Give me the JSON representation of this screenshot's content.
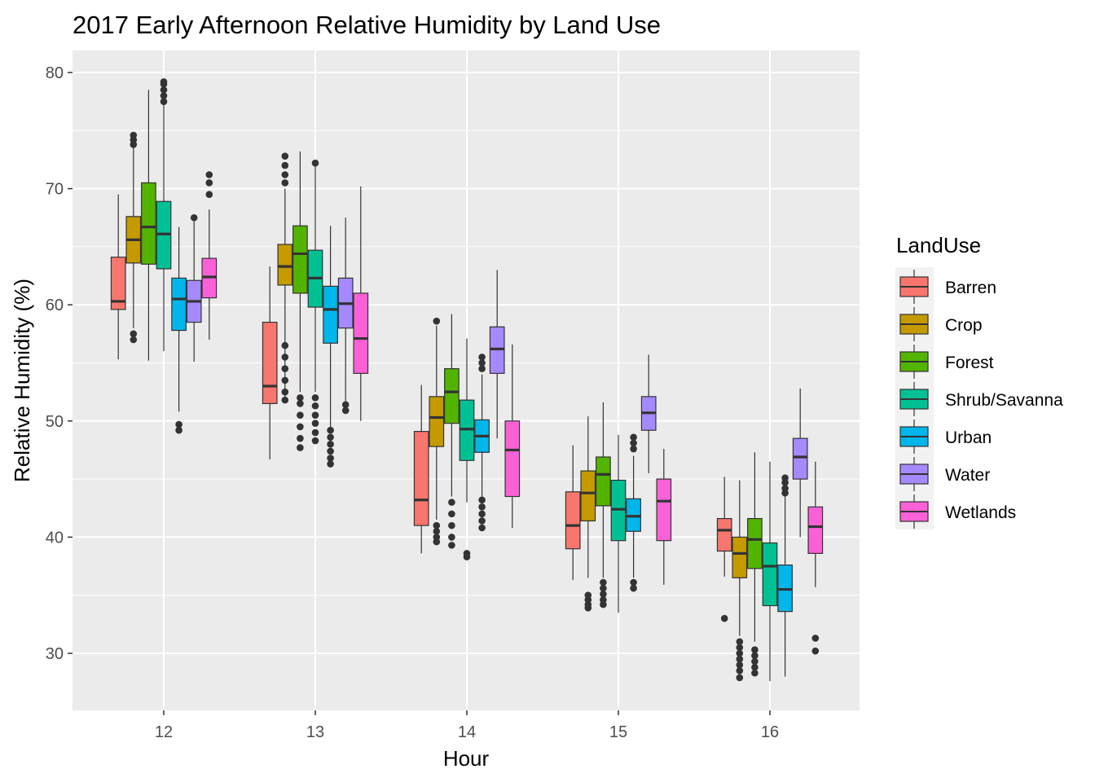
{
  "chart_data": {
    "type": "boxplot",
    "title": "2017 Early Afternoon Relative Humidity by Land Use",
    "xlabel": "Hour",
    "ylabel": "Relative Humidity (%)",
    "categories": [
      "12",
      "13",
      "14",
      "15",
      "16"
    ],
    "yticks": [
      30,
      40,
      50,
      60,
      70,
      80
    ],
    "ylim": [
      25,
      81.8
    ],
    "grid": true,
    "legend": {
      "title": "LandUse",
      "position": "right"
    },
    "series": [
      {
        "name": "Barren",
        "color": "#F8766D",
        "boxes": [
          {
            "min": 55.3,
            "q1": 59.6,
            "median": 60.3,
            "q3": 64.1,
            "max": 69.5,
            "outliers": []
          },
          {
            "min": 46.7,
            "q1": 51.5,
            "median": 53.0,
            "q3": 58.5,
            "max": 63.3,
            "outliers": []
          },
          {
            "min": 38.6,
            "q1": 41.0,
            "median": 43.2,
            "q3": 49.1,
            "max": 53.1,
            "outliers": []
          },
          {
            "min": 36.3,
            "q1": 39.0,
            "median": 41.0,
            "q3": 43.9,
            "max": 47.9,
            "outliers": []
          },
          {
            "min": 36.6,
            "q1": 38.8,
            "median": 40.6,
            "q3": 41.6,
            "max": 45.2,
            "outliers": [
              33.0
            ]
          }
        ]
      },
      {
        "name": "Crop",
        "color": "#C49A00",
        "boxes": [
          {
            "min": 58.0,
            "q1": 63.6,
            "median": 65.6,
            "q3": 67.6,
            "max": 73.8,
            "outliers": [
              57.0,
              57.5,
              73.8,
              74.2,
              74.6
            ]
          },
          {
            "min": 52.0,
            "q1": 61.7,
            "median": 63.3,
            "q3": 65.2,
            "max": 70.0,
            "outliers": [
              51.8,
              52.5,
              53.5,
              54.5,
              55.5,
              56.5,
              70.5,
              71.2,
              72.0,
              72.8
            ]
          },
          {
            "min": 41.5,
            "q1": 47.8,
            "median": 50.3,
            "q3": 52.1,
            "max": 58.2,
            "outliers": [
              39.6,
              40.0,
              40.5,
              41.0,
              58.6
            ]
          },
          {
            "min": 36.5,
            "q1": 41.4,
            "median": 43.8,
            "q3": 45.7,
            "max": 50.4,
            "outliers": [
              33.9,
              34.2,
              34.6,
              35.0
            ]
          },
          {
            "min": 31.5,
            "q1": 36.5,
            "median": 38.6,
            "q3": 40.0,
            "max": 44.9,
            "outliers": [
              27.9,
              28.5,
              29.0,
              29.5,
              30.0,
              30.5,
              31.0
            ]
          }
        ]
      },
      {
        "name": "Forest",
        "color": "#53B400",
        "boxes": [
          {
            "min": 55.2,
            "q1": 63.5,
            "median": 66.7,
            "q3": 70.5,
            "max": 78.5,
            "outliers": []
          },
          {
            "min": 52.5,
            "q1": 61.0,
            "median": 64.4,
            "q3": 66.8,
            "max": 73.2,
            "outliers": [
              47.7,
              48.5,
              49.5,
              50.5,
              51.5,
              52.0
            ]
          },
          {
            "min": 43.5,
            "q1": 49.8,
            "median": 52.5,
            "q3": 54.5,
            "max": 59.2,
            "outliers": [
              39.3,
              40.0,
              41.0,
              42.0,
              43.0
            ]
          },
          {
            "min": 36.5,
            "q1": 42.7,
            "median": 45.4,
            "q3": 46.9,
            "max": 51.6,
            "outliers": [
              34.2,
              34.6,
              35.1,
              35.6,
              36.1
            ]
          },
          {
            "min": 31.0,
            "q1": 37.3,
            "median": 39.8,
            "q3": 41.6,
            "max": 47.3,
            "outliers": [
              28.3,
              28.8,
              29.3,
              29.8,
              30.3
            ]
          }
        ]
      },
      {
        "name": "Shrub/Savanna",
        "color": "#00C094",
        "boxes": [
          {
            "min": 56.0,
            "q1": 63.1,
            "median": 66.1,
            "q3": 68.9,
            "max": 77.5,
            "outliers": [
              77.5,
              78.0,
              78.5,
              79.0,
              79.2
            ]
          },
          {
            "min": 52.5,
            "q1": 59.8,
            "median": 62.3,
            "q3": 64.7,
            "max": 72.0,
            "outliers": [
              48.3,
              49.0,
              49.8,
              50.5,
              51.3,
              52.0,
              72.2
            ]
          },
          {
            "min": 43.0,
            "q1": 46.6,
            "median": 49.3,
            "q3": 51.8,
            "max": 57.1,
            "outliers": [
              38.3,
              38.6
            ]
          },
          {
            "min": 33.5,
            "q1": 39.7,
            "median": 42.4,
            "q3": 44.9,
            "max": 48.8,
            "outliers": []
          },
          {
            "min": 27.6,
            "q1": 34.1,
            "median": 37.5,
            "q3": 39.5,
            "max": 46.5,
            "outliers": []
          }
        ]
      },
      {
        "name": "Urban",
        "color": "#00B6EB",
        "boxes": [
          {
            "min": 50.8,
            "q1": 57.8,
            "median": 60.5,
            "q3": 62.3,
            "max": 66.7,
            "outliers": [
              49.2,
              49.7
            ]
          },
          {
            "min": 49.5,
            "q1": 56.7,
            "median": 59.6,
            "q3": 61.6,
            "max": 66.8,
            "outliers": [
              46.3,
              46.8,
              47.4,
              48.0,
              48.6,
              49.2
            ]
          },
          {
            "min": 43.5,
            "q1": 47.3,
            "median": 48.7,
            "q3": 50.1,
            "max": 54.0,
            "outliers": [
              40.8,
              41.4,
              42.0,
              42.6,
              43.2,
              54.5,
              55.0,
              55.5
            ]
          },
          {
            "min": 36.5,
            "q1": 40.5,
            "median": 41.8,
            "q3": 43.3,
            "max": 47.0,
            "outliers": [
              35.6,
              36.1,
              47.6,
              48.1,
              48.6
            ]
          },
          {
            "min": 28.0,
            "q1": 33.6,
            "median": 35.5,
            "q3": 37.6,
            "max": 43.5,
            "outliers": [
              43.8,
              44.2,
              44.7,
              45.1
            ]
          }
        ]
      },
      {
        "name": "Water",
        "color": "#A58AFF",
        "boxes": [
          {
            "min": 55.1,
            "q1": 58.5,
            "median": 60.3,
            "q3": 62.1,
            "max": 67.2,
            "outliers": [
              67.5
            ]
          },
          {
            "min": 51.5,
            "q1": 58.0,
            "median": 60.1,
            "q3": 62.3,
            "max": 67.5,
            "outliers": [
              50.9,
              51.4
            ]
          },
          {
            "min": 48.5,
            "q1": 54.1,
            "median": 56.2,
            "q3": 58.1,
            "max": 63.0,
            "outliers": []
          },
          {
            "min": 45.5,
            "q1": 49.2,
            "median": 50.7,
            "q3": 52.1,
            "max": 55.7,
            "outliers": []
          },
          {
            "min": 40.0,
            "q1": 45.0,
            "median": 46.9,
            "q3": 48.5,
            "max": 52.8,
            "outliers": []
          }
        ]
      },
      {
        "name": "Wetlands",
        "color": "#FB61D7",
        "boxes": [
          {
            "min": 57.0,
            "q1": 60.6,
            "median": 62.4,
            "q3": 64.0,
            "max": 68.2,
            "outliers": [
              69.5,
              70.5,
              71.2
            ]
          },
          {
            "min": 50.0,
            "q1": 54.1,
            "median": 57.1,
            "q3": 61.0,
            "max": 70.2,
            "outliers": []
          },
          {
            "min": 40.8,
            "q1": 43.5,
            "median": 47.5,
            "q3": 50.0,
            "max": 56.6,
            "outliers": []
          },
          {
            "min": 35.9,
            "q1": 39.7,
            "median": 43.1,
            "q3": 45.0,
            "max": 47.6,
            "outliers": []
          },
          {
            "min": 35.7,
            "q1": 38.6,
            "median": 40.9,
            "q3": 42.6,
            "max": 46.5,
            "outliers": [
              30.2,
              31.3
            ]
          }
        ]
      }
    ]
  }
}
